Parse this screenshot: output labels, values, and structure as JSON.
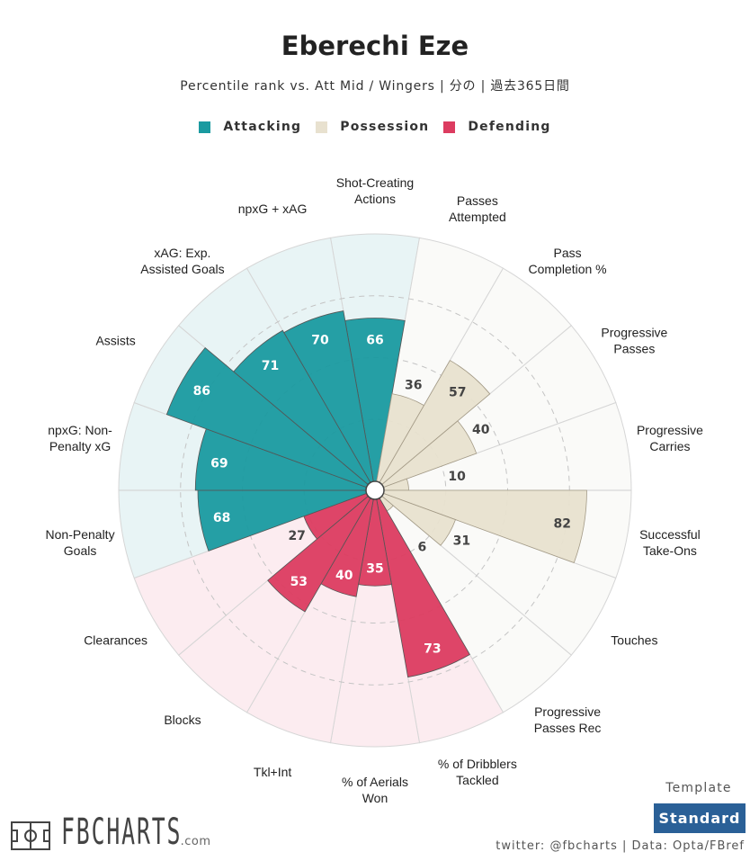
{
  "header": {
    "title": "Eberechi Eze",
    "subtitle": "Percentile rank vs. Att Mid / Wingers | 分の | 過去365日間"
  },
  "legend": [
    {
      "label": "Attacking",
      "color": "#1a9aa0"
    },
    {
      "label": "Possession",
      "color": "#e8e1cf"
    },
    {
      "label": "Defending",
      "color": "#dc3c60"
    }
  ],
  "chart_data": {
    "type": "polar-bar",
    "rmax": 100,
    "gridlines": [
      25,
      50,
      75
    ],
    "categories": [
      {
        "label": [
          "Shot-Creating",
          "Actions"
        ],
        "value": 66,
        "group": "Attacking"
      },
      {
        "label": [
          "Passes",
          "Attempted"
        ],
        "value": 36,
        "group": "Possession"
      },
      {
        "label": [
          "Pass",
          "Completion %"
        ],
        "value": 57,
        "group": "Possession"
      },
      {
        "label": [
          "Progressive",
          "Passes"
        ],
        "value": 40,
        "group": "Possession"
      },
      {
        "label": [
          "Progressive",
          "Carries"
        ],
        "value": 10,
        "group": "Possession"
      },
      {
        "label": [
          "Successful",
          "Take-Ons"
        ],
        "value": 82,
        "group": "Possession"
      },
      {
        "label": [
          "Touches"
        ],
        "value": 31,
        "group": "Possession"
      },
      {
        "label": [
          "Progressive",
          "Passes Rec"
        ],
        "value": 6,
        "group": "Possession"
      },
      {
        "label": [
          "% of Dribblers",
          "Tackled"
        ],
        "value": 73,
        "group": "Defending"
      },
      {
        "label": [
          "% of Aerials",
          "Won"
        ],
        "value": 35,
        "group": "Defending"
      },
      {
        "label": [
          "Tkl+Int"
        ],
        "value": 40,
        "group": "Defending"
      },
      {
        "label": [
          "Blocks"
        ],
        "value": 53,
        "group": "Defending"
      },
      {
        "label": [
          "Clearances"
        ],
        "value": 27,
        "group": "Defending"
      },
      {
        "label": [
          "Non-Penalty",
          "Goals"
        ],
        "value": 68,
        "group": "Attacking"
      },
      {
        "label": [
          "npxG: Non-",
          "Penalty xG"
        ],
        "value": 69,
        "group": "Attacking"
      },
      {
        "label": [
          "Assists"
        ],
        "value": 86,
        "group": "Attacking"
      },
      {
        "label": [
          "xAG: Exp.",
          "Assisted Goals"
        ],
        "value": 71,
        "group": "Attacking"
      },
      {
        "label": [
          "npxG + xAG"
        ],
        "value": 70,
        "group": "Attacking"
      }
    ],
    "group_colors": {
      "Attacking": {
        "bar": "#1a9aa0",
        "bg": "#e8f4f5",
        "text": "#ffffff"
      },
      "Possession": {
        "bar": "#e8e1cf",
        "bg": "#fafaf8",
        "text": "#444444"
      },
      "Defending": {
        "bar": "#dc3c60",
        "bg": "#fcecf0",
        "text": "#ffffff"
      }
    }
  },
  "template": {
    "label": "Template",
    "value": "Standard"
  },
  "footer": {
    "credit": "twitter: @fbcharts | Data: Opta/FBref",
    "logo_text": "FBCHARTS",
    "logo_suffix": ".com"
  }
}
